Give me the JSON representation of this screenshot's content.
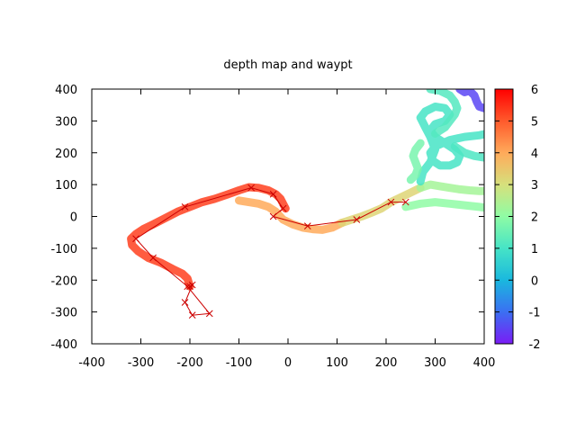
{
  "chart_data": {
    "type": "scatter",
    "title": "depth map  and waypt",
    "xlabel": "",
    "ylabel": "",
    "xlim": [
      -400,
      400
    ],
    "ylim": [
      -400,
      400
    ],
    "x_ticks": [
      -400,
      -300,
      -200,
      -100,
      0,
      100,
      200,
      300,
      400
    ],
    "y_ticks": [
      -400,
      -300,
      -200,
      -100,
      0,
      100,
      200,
      300,
      400
    ],
    "colorbar": {
      "range": [
        -2,
        6
      ],
      "ticks": [
        -2,
        -1,
        0,
        1,
        2,
        3,
        4,
        5,
        6
      ],
      "palette": [
        "#7a1cf5",
        "#3b6ff2",
        "#1ab8de",
        "#46e4c6",
        "#8ffca4",
        "#d6e07c",
        "#ffaa5a",
        "#ff5a2c",
        "#ff0000"
      ]
    },
    "grid": false,
    "legend": "none",
    "depth_series": [
      {
        "points": [
          [
            -200,
            -220
          ],
          [
            -205,
            -195
          ],
          [
            -215,
            -180
          ],
          [
            -235,
            -165
          ],
          [
            -260,
            -145
          ],
          [
            -285,
            -130
          ],
          [
            -305,
            -110
          ],
          [
            -318,
            -90
          ],
          [
            -320,
            -70
          ],
          [
            -310,
            -55
          ],
          [
            -295,
            -40
          ],
          [
            -275,
            -25
          ],
          [
            -250,
            -5
          ],
          [
            -225,
            15
          ],
          [
            -200,
            30
          ],
          [
            -175,
            45
          ],
          [
            -150,
            55
          ],
          [
            -125,
            68
          ],
          [
            -100,
            82
          ],
          [
            -80,
            92
          ],
          [
            -60,
            90
          ],
          [
            -40,
            82
          ],
          [
            -25,
            70
          ],
          [
            -15,
            55
          ],
          [
            -10,
            40
          ],
          [
            -5,
            25
          ]
        ],
        "depth": 5.3
      },
      {
        "points": [
          [
            -100,
            50
          ],
          [
            -80,
            45
          ],
          [
            -60,
            40
          ],
          [
            -40,
            30
          ],
          [
            -25,
            15
          ],
          [
            -10,
            -10
          ],
          [
            10,
            -25
          ],
          [
            30,
            -35
          ],
          [
            50,
            -40
          ],
          [
            70,
            -42
          ],
          [
            90,
            -35
          ],
          [
            110,
            -20
          ]
        ],
        "depth": 4.0
      },
      {
        "points": [
          [
            110,
            -20
          ],
          [
            130,
            -10
          ],
          [
            150,
            0
          ],
          [
            170,
            12
          ],
          [
            190,
            25
          ],
          [
            210,
            45
          ],
          [
            230,
            60
          ],
          [
            250,
            75
          ],
          [
            270,
            90
          ]
        ],
        "depth": 3.2
      },
      {
        "points": [
          [
            270,
            90
          ],
          [
            290,
            100
          ],
          [
            310,
            95
          ],
          [
            330,
            90
          ],
          [
            350,
            85
          ],
          [
            370,
            82
          ],
          [
            390,
            80
          ],
          [
            400,
            80
          ]
        ],
        "depth": 2.3
      },
      {
        "points": [
          [
            240,
            30
          ],
          [
            270,
            40
          ],
          [
            300,
            45
          ],
          [
            330,
            40
          ],
          [
            360,
            35
          ],
          [
            390,
            30
          ],
          [
            400,
            28
          ]
        ],
        "depth": 2.0
      },
      {
        "points": [
          [
            270,
            110
          ],
          [
            275,
            140
          ],
          [
            290,
            170
          ],
          [
            300,
            210
          ],
          [
            290,
            250
          ],
          [
            280,
            280
          ],
          [
            270,
            310
          ],
          [
            280,
            330
          ],
          [
            300,
            345
          ],
          [
            320,
            340
          ],
          [
            330,
            320
          ],
          [
            320,
            300
          ],
          [
            300,
            290
          ],
          [
            290,
            270
          ],
          [
            300,
            250
          ],
          [
            320,
            230
          ],
          [
            340,
            210
          ],
          [
            350,
            190
          ],
          [
            345,
            170
          ],
          [
            330,
            160
          ],
          [
            310,
            160
          ],
          [
            295,
            175
          ],
          [
            290,
            200
          ],
          [
            300,
            220
          ],
          [
            330,
            240
          ],
          [
            360,
            250
          ],
          [
            390,
            255
          ],
          [
            400,
            258
          ]
        ],
        "depth": 1.0
      },
      {
        "points": [
          [
            300,
            260
          ],
          [
            320,
            280
          ],
          [
            330,
            300
          ],
          [
            340,
            320
          ],
          [
            345,
            340
          ],
          [
            340,
            360
          ],
          [
            330,
            380
          ],
          [
            310,
            395
          ],
          [
            290,
            400
          ]
        ],
        "depth": 1.2
      },
      {
        "points": [
          [
            250,
            115
          ],
          [
            260,
            130
          ],
          [
            265,
            150
          ],
          [
            260,
            170
          ],
          [
            255,
            190
          ],
          [
            260,
            210
          ],
          [
            270,
            230
          ]
        ],
        "depth": 1.7
      },
      {
        "points": [
          [
            340,
            220
          ],
          [
            360,
            200
          ],
          [
            380,
            190
          ],
          [
            400,
            185
          ]
        ],
        "depth": 1.1
      },
      {
        "points": [
          [
            350,
            400
          ],
          [
            360,
            390
          ],
          [
            370,
            395
          ],
          [
            380,
            380
          ],
          [
            385,
            360
          ],
          [
            390,
            345
          ],
          [
            400,
            340
          ]
        ],
        "depth": -1.5
      }
    ],
    "waypoints": [
      {
        "x": -200,
        "y": -220
      },
      {
        "x": -195,
        "y": -215
      },
      {
        "x": -210,
        "y": -270
      },
      {
        "x": -195,
        "y": -310
      },
      {
        "x": -160,
        "y": -305
      },
      {
        "x": -205,
        "y": -220
      },
      {
        "x": -275,
        "y": -130
      },
      {
        "x": -310,
        "y": -70
      },
      {
        "x": -210,
        "y": 30
      },
      {
        "x": -75,
        "y": 90
      },
      {
        "x": -30,
        "y": 70
      },
      {
        "x": -10,
        "y": 25
      },
      {
        "x": -30,
        "y": 0
      },
      {
        "x": 40,
        "y": -30
      },
      {
        "x": 140,
        "y": -10
      },
      {
        "x": 210,
        "y": 45
      },
      {
        "x": 240,
        "y": 45
      }
    ]
  }
}
